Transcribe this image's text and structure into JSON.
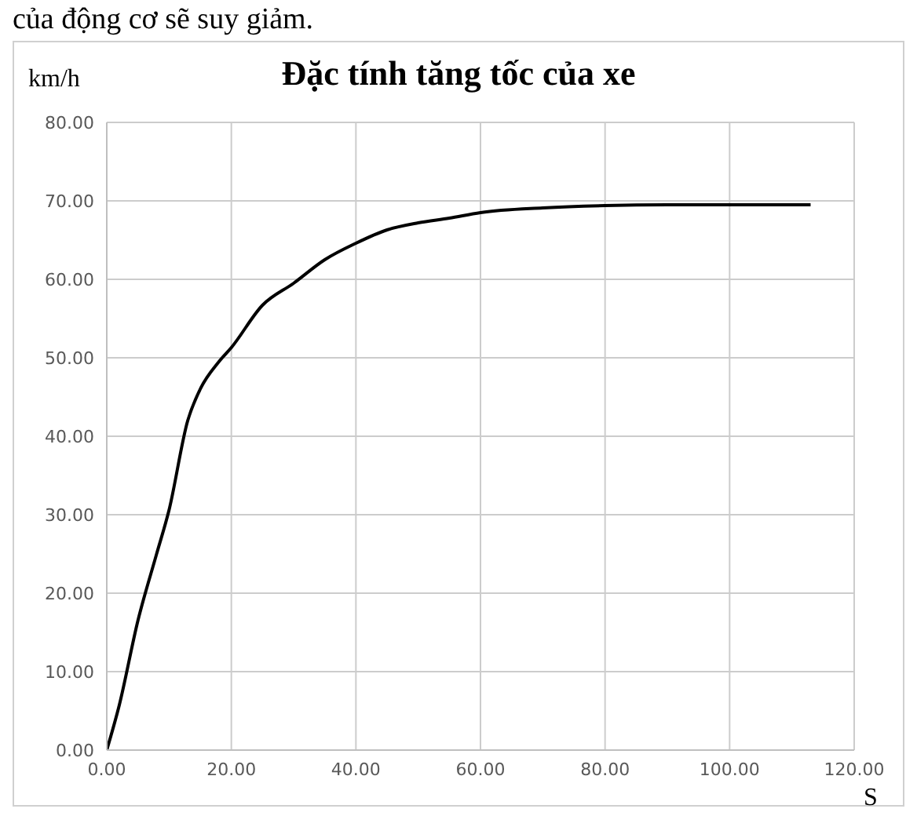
{
  "chart_data": {
    "type": "line",
    "title": "Đặc tính tăng tốc của xe",
    "xlabel": "S",
    "ylabel": "km/h",
    "annotations": [
      "của động cơ sẽ suy giảm."
    ],
    "x": [
      0,
      2,
      5,
      8,
      10,
      13,
      15,
      18,
      20,
      25,
      30,
      35,
      40,
      45,
      50,
      55,
      60,
      70,
      80,
      90,
      100,
      113
    ],
    "series": [
      {
        "color": "#000000",
        "values": [
          0,
          5.7,
          16.5,
          25,
          30.6,
          42,
          46,
          49.5,
          51.3,
          56.7,
          59.5,
          62.5,
          64.6,
          66.3,
          67.2,
          67.8,
          68.5,
          69.1,
          69.4,
          69.5,
          69.5,
          69.5
        ]
      }
    ],
    "xlim": [
      0,
      120
    ],
    "xticks": [
      {
        "value": 0,
        "label": "0.00"
      },
      {
        "value": 20,
        "label": "20.00"
      },
      {
        "value": 40,
        "label": "40.00"
      },
      {
        "value": 60,
        "label": "60.00"
      },
      {
        "value": 80,
        "label": "80.00"
      },
      {
        "value": 100,
        "label": "100.00"
      },
      {
        "value": 120,
        "label": "120.00"
      }
    ],
    "ylim": [
      0,
      80
    ],
    "yticks": [
      {
        "value": 0,
        "label": "0.00"
      },
      {
        "value": 10,
        "label": "10.00"
      },
      {
        "value": 20,
        "label": "20.00"
      },
      {
        "value": 30,
        "label": "30.00"
      },
      {
        "value": 40,
        "label": "40.00"
      },
      {
        "value": 50,
        "label": "50.00"
      },
      {
        "value": 60,
        "label": "60.00"
      },
      {
        "value": 70,
        "label": "70.00"
      },
      {
        "value": 80,
        "label": "80.00"
      }
    ],
    "grid": true,
    "legend": false,
    "marker": "none",
    "line_style": "solid"
  }
}
